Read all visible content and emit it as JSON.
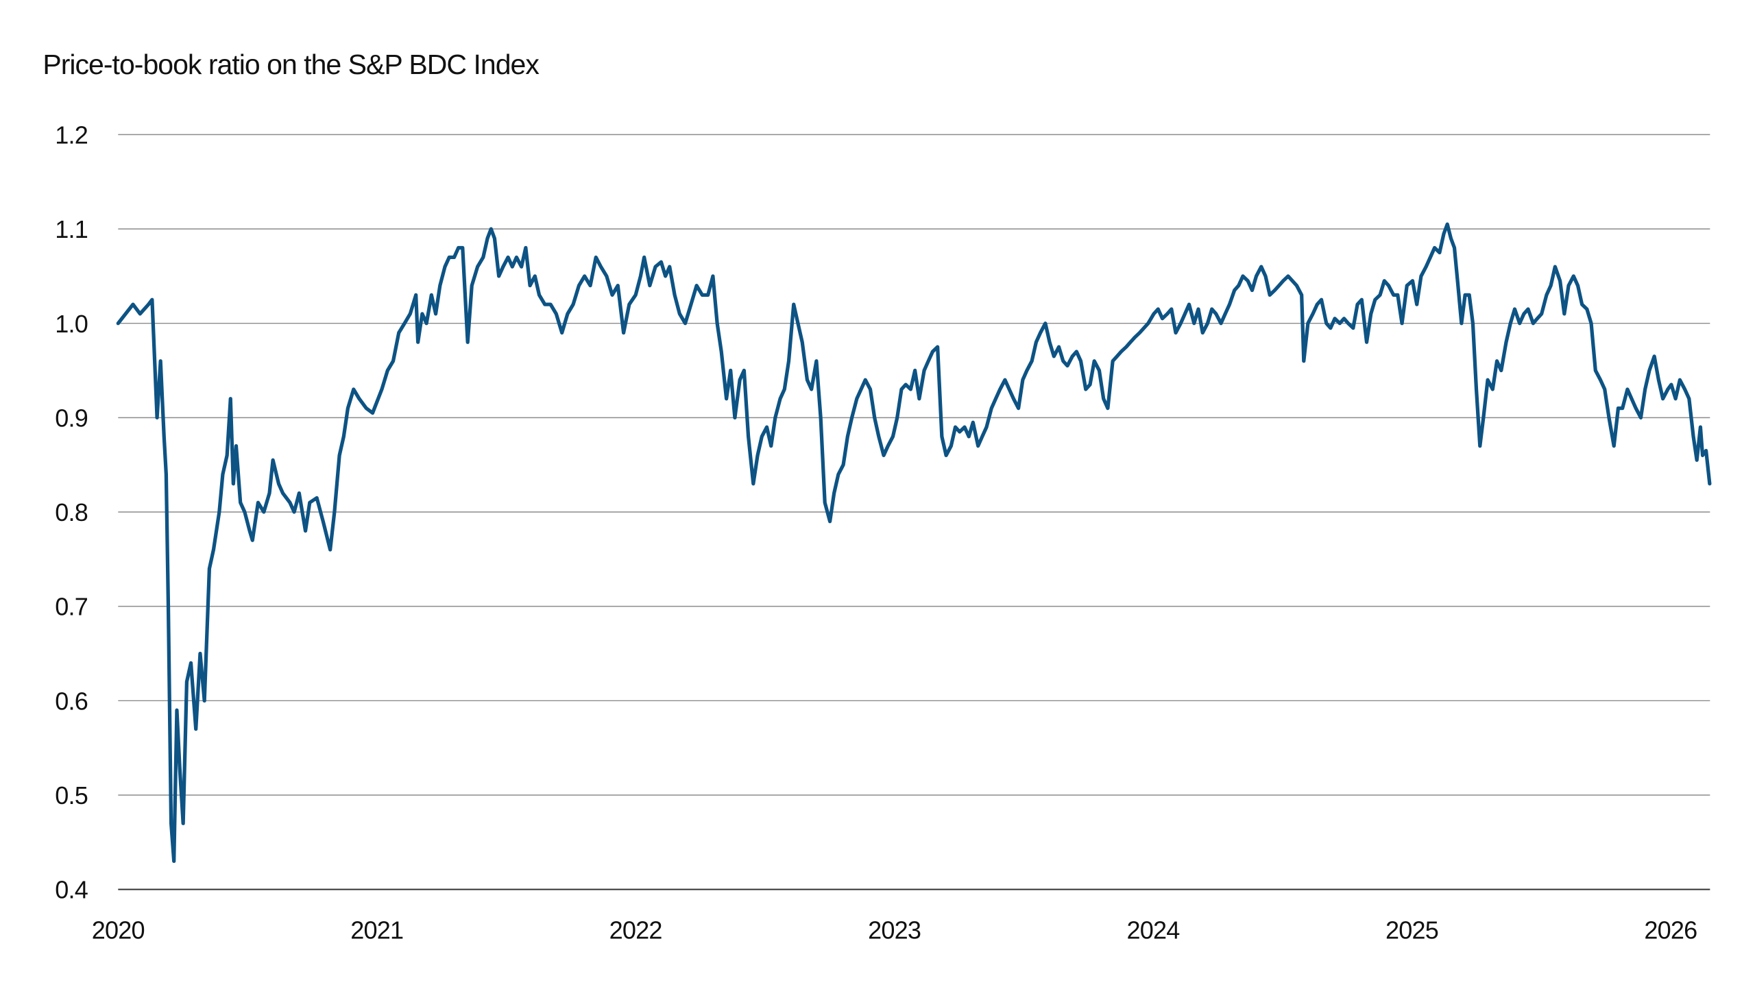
{
  "chart_data": {
    "type": "line",
    "title": "Price-to-book ratio on the S&P BDC Index",
    "xlabel": "",
    "ylabel": "",
    "ylim": [
      0.4,
      1.2
    ],
    "yticks": [
      "1.2",
      "1.1",
      "1.0",
      "0.9",
      "0.8",
      "0.7",
      "0.6",
      "0.5",
      "0.4"
    ],
    "xticks": [
      "2020",
      "2021",
      "2022",
      "2023",
      "2024",
      "2025",
      "2026"
    ],
    "xlim": [
      "2020-01-01",
      "2026-02-25"
    ],
    "grid": "horizontal",
    "line_color": "#0d5384",
    "points": [
      [
        "2020-01-01",
        1.0
      ],
      [
        "2020-01-22",
        1.02
      ],
      [
        "2020-02-01",
        1.01
      ],
      [
        "2020-02-13",
        1.02
      ],
      [
        "2020-02-18",
        1.025
      ],
      [
        "2020-02-25",
        0.9
      ],
      [
        "2020-03-01",
        0.96
      ],
      [
        "2020-03-06",
        0.88
      ],
      [
        "2020-03-09",
        0.84
      ],
      [
        "2020-03-12",
        0.7
      ],
      [
        "2020-03-16",
        0.47
      ],
      [
        "2020-03-20",
        0.43
      ],
      [
        "2020-03-24",
        0.59
      ],
      [
        "2020-03-28",
        0.53
      ],
      [
        "2020-04-02",
        0.47
      ],
      [
        "2020-04-07",
        0.62
      ],
      [
        "2020-04-13",
        0.64
      ],
      [
        "2020-04-20",
        0.57
      ],
      [
        "2020-04-26",
        0.65
      ],
      [
        "2020-05-02",
        0.6
      ],
      [
        "2020-05-09",
        0.74
      ],
      [
        "2020-05-15",
        0.76
      ],
      [
        "2020-05-23",
        0.8
      ],
      [
        "2020-05-28",
        0.84
      ],
      [
        "2020-06-03",
        0.86
      ],
      [
        "2020-06-08",
        0.92
      ],
      [
        "2020-06-12",
        0.83
      ],
      [
        "2020-06-16",
        0.87
      ],
      [
        "2020-06-22",
        0.81
      ],
      [
        "2020-06-28",
        0.8
      ],
      [
        "2020-07-05",
        0.78
      ],
      [
        "2020-07-09",
        0.77
      ],
      [
        "2020-07-17",
        0.81
      ],
      [
        "2020-07-25",
        0.8
      ],
      [
        "2020-08-02",
        0.82
      ],
      [
        "2020-08-07",
        0.855
      ],
      [
        "2020-08-15",
        0.83
      ],
      [
        "2020-08-21",
        0.82
      ],
      [
        "2020-08-31",
        0.81
      ],
      [
        "2020-09-06",
        0.8
      ],
      [
        "2020-09-13",
        0.82
      ],
      [
        "2020-09-22",
        0.78
      ],
      [
        "2020-09-28",
        0.81
      ],
      [
        "2020-10-08",
        0.815
      ],
      [
        "2020-10-17",
        0.79
      ],
      [
        "2020-10-27",
        0.76
      ],
      [
        "2020-11-02",
        0.8
      ],
      [
        "2020-11-09",
        0.86
      ],
      [
        "2020-11-15",
        0.88
      ],
      [
        "2020-11-21",
        0.91
      ],
      [
        "2020-11-29",
        0.93
      ],
      [
        "2020-12-07",
        0.92
      ],
      [
        "2020-12-17",
        0.91
      ],
      [
        "2020-12-26",
        0.905
      ],
      [
        "2021-01-08",
        0.93
      ],
      [
        "2021-01-16",
        0.95
      ],
      [
        "2021-01-24",
        0.96
      ],
      [
        "2021-02-01",
        0.99
      ],
      [
        "2021-02-09",
        1.0
      ],
      [
        "2021-02-17",
        1.01
      ],
      [
        "2021-02-25",
        1.03
      ],
      [
        "2021-02-28",
        0.98
      ],
      [
        "2021-03-06",
        1.01
      ],
      [
        "2021-03-12",
        1.0
      ],
      [
        "2021-03-19",
        1.03
      ],
      [
        "2021-03-25",
        1.01
      ],
      [
        "2021-03-31",
        1.04
      ],
      [
        "2021-04-07",
        1.06
      ],
      [
        "2021-04-13",
        1.07
      ],
      [
        "2021-04-20",
        1.07
      ],
      [
        "2021-04-26",
        1.08
      ],
      [
        "2021-05-02",
        1.08
      ],
      [
        "2021-05-09",
        0.98
      ],
      [
        "2021-05-15",
        1.04
      ],
      [
        "2021-05-23",
        1.06
      ],
      [
        "2021-05-31",
        1.07
      ],
      [
        "2021-06-06",
        1.09
      ],
      [
        "2021-06-11",
        1.1
      ],
      [
        "2021-06-16",
        1.09
      ],
      [
        "2021-06-22",
        1.05
      ],
      [
        "2021-06-28",
        1.06
      ],
      [
        "2021-07-05",
        1.07
      ],
      [
        "2021-07-11",
        1.06
      ],
      [
        "2021-07-17",
        1.07
      ],
      [
        "2021-07-24",
        1.06
      ],
      [
        "2021-07-30",
        1.08
      ],
      [
        "2021-08-05",
        1.04
      ],
      [
        "2021-08-12",
        1.05
      ],
      [
        "2021-08-18",
        1.03
      ],
      [
        "2021-08-26",
        1.02
      ],
      [
        "2021-09-03",
        1.02
      ],
      [
        "2021-09-11",
        1.01
      ],
      [
        "2021-09-19",
        0.99
      ],
      [
        "2021-09-27",
        1.01
      ],
      [
        "2021-10-05",
        1.02
      ],
      [
        "2021-10-13",
        1.04
      ],
      [
        "2021-10-21",
        1.05
      ],
      [
        "2021-10-29",
        1.04
      ],
      [
        "2021-11-06",
        1.07
      ],
      [
        "2021-11-13",
        1.06
      ],
      [
        "2021-11-21",
        1.05
      ],
      [
        "2021-11-29",
        1.03
      ],
      [
        "2021-12-07",
        1.04
      ],
      [
        "2021-12-15",
        0.99
      ],
      [
        "2021-12-23",
        1.02
      ],
      [
        "2022-01-01",
        1.03
      ],
      [
        "2022-01-08",
        1.05
      ],
      [
        "2022-01-13",
        1.07
      ],
      [
        "2022-01-21",
        1.04
      ],
      [
        "2022-01-29",
        1.06
      ],
      [
        "2022-02-06",
        1.065
      ],
      [
        "2022-02-12",
        1.05
      ],
      [
        "2022-02-18",
        1.06
      ],
      [
        "2022-02-25",
        1.03
      ],
      [
        "2022-03-04",
        1.01
      ],
      [
        "2022-03-12",
        1.0
      ],
      [
        "2022-03-20",
        1.02
      ],
      [
        "2022-03-28",
        1.04
      ],
      [
        "2022-04-05",
        1.03
      ],
      [
        "2022-04-13",
        1.03
      ],
      [
        "2022-04-20",
        1.05
      ],
      [
        "2022-04-26",
        1.0
      ],
      [
        "2022-05-02",
        0.97
      ],
      [
        "2022-05-09",
        0.92
      ],
      [
        "2022-05-15",
        0.95
      ],
      [
        "2022-05-21",
        0.9
      ],
      [
        "2022-05-28",
        0.94
      ],
      [
        "2022-06-03",
        0.95
      ],
      [
        "2022-06-09",
        0.88
      ],
      [
        "2022-06-16",
        0.83
      ],
      [
        "2022-06-22",
        0.86
      ],
      [
        "2022-06-28",
        0.88
      ],
      [
        "2022-07-05",
        0.89
      ],
      [
        "2022-07-11",
        0.87
      ],
      [
        "2022-07-17",
        0.9
      ],
      [
        "2022-07-24",
        0.92
      ],
      [
        "2022-07-30",
        0.93
      ],
      [
        "2022-08-05",
        0.96
      ],
      [
        "2022-08-12",
        1.02
      ],
      [
        "2022-08-18",
        1.0
      ],
      [
        "2022-08-24",
        0.98
      ],
      [
        "2022-08-31",
        0.94
      ],
      [
        "2022-09-06",
        0.93
      ],
      [
        "2022-09-13",
        0.96
      ],
      [
        "2022-09-19",
        0.9
      ],
      [
        "2022-09-25",
        0.81
      ],
      [
        "2022-10-02",
        0.79
      ],
      [
        "2022-10-08",
        0.82
      ],
      [
        "2022-10-14",
        0.84
      ],
      [
        "2022-10-21",
        0.85
      ],
      [
        "2022-10-27",
        0.88
      ],
      [
        "2022-11-02",
        0.9
      ],
      [
        "2022-11-09",
        0.92
      ],
      [
        "2022-11-15",
        0.93
      ],
      [
        "2022-11-21",
        0.94
      ],
      [
        "2022-11-28",
        0.93
      ],
      [
        "2022-12-04",
        0.9
      ],
      [
        "2022-12-10",
        0.88
      ],
      [
        "2022-12-17",
        0.86
      ],
      [
        "2022-12-23",
        0.87
      ],
      [
        "2022-12-30",
        0.88
      ],
      [
        "2023-01-05",
        0.9
      ],
      [
        "2023-01-11",
        0.93
      ],
      [
        "2023-01-17",
        0.935
      ],
      [
        "2023-01-24",
        0.93
      ],
      [
        "2023-01-30",
        0.95
      ],
      [
        "2023-02-05",
        0.92
      ],
      [
        "2023-02-12",
        0.95
      ],
      [
        "2023-02-18",
        0.96
      ],
      [
        "2023-02-24",
        0.97
      ],
      [
        "2023-03-03",
        0.975
      ],
      [
        "2023-03-09",
        0.88
      ],
      [
        "2023-03-15",
        0.86
      ],
      [
        "2023-03-22",
        0.87
      ],
      [
        "2023-03-28",
        0.89
      ],
      [
        "2023-04-03",
        0.885
      ],
      [
        "2023-04-10",
        0.89
      ],
      [
        "2023-04-16",
        0.88
      ],
      [
        "2023-04-22",
        0.895
      ],
      [
        "2023-04-29",
        0.87
      ],
      [
        "2023-05-05",
        0.88
      ],
      [
        "2023-05-11",
        0.89
      ],
      [
        "2023-05-18",
        0.91
      ],
      [
        "2023-05-24",
        0.92
      ],
      [
        "2023-05-30",
        0.93
      ],
      [
        "2023-06-06",
        0.94
      ],
      [
        "2023-06-12",
        0.93
      ],
      [
        "2023-06-18",
        0.92
      ],
      [
        "2023-06-25",
        0.91
      ],
      [
        "2023-07-01",
        0.94
      ],
      [
        "2023-07-07",
        0.95
      ],
      [
        "2023-07-14",
        0.96
      ],
      [
        "2023-07-20",
        0.98
      ],
      [
        "2023-07-26",
        0.99
      ],
      [
        "2023-08-02",
        1.0
      ],
      [
        "2023-08-08",
        0.98
      ],
      [
        "2023-08-14",
        0.965
      ],
      [
        "2023-08-21",
        0.975
      ],
      [
        "2023-08-27",
        0.96
      ],
      [
        "2023-09-02",
        0.955
      ],
      [
        "2023-09-09",
        0.965
      ],
      [
        "2023-09-15",
        0.97
      ],
      [
        "2023-09-21",
        0.96
      ],
      [
        "2023-09-28",
        0.93
      ],
      [
        "2023-10-04",
        0.935
      ],
      [
        "2023-10-10",
        0.96
      ],
      [
        "2023-10-17",
        0.95
      ],
      [
        "2023-10-23",
        0.92
      ],
      [
        "2023-10-29",
        0.91
      ],
      [
        "2023-11-05",
        0.96
      ],
      [
        "2023-11-11",
        0.965
      ],
      [
        "2023-11-17",
        0.97
      ],
      [
        "2023-11-24",
        0.975
      ],
      [
        "2023-11-30",
        0.98
      ],
      [
        "2023-12-06",
        0.985
      ],
      [
        "2023-12-13",
        0.99
      ],
      [
        "2023-12-19",
        0.995
      ],
      [
        "2023-12-25",
        1.0
      ],
      [
        "2024-01-02",
        1.01
      ],
      [
        "2024-01-08",
        1.015
      ],
      [
        "2024-01-14",
        1.005
      ],
      [
        "2024-01-21",
        1.01
      ],
      [
        "2024-01-27",
        1.015
      ],
      [
        "2024-02-02",
        0.99
      ],
      [
        "2024-02-09",
        1.0
      ],
      [
        "2024-02-15",
        1.01
      ],
      [
        "2024-02-21",
        1.02
      ],
      [
        "2024-02-28",
        1.0
      ],
      [
        "2024-03-05",
        1.015
      ],
      [
        "2024-03-11",
        0.99
      ],
      [
        "2024-03-18",
        1.0
      ],
      [
        "2024-03-24",
        1.015
      ],
      [
        "2024-03-30",
        1.01
      ],
      [
        "2024-04-06",
        1.0
      ],
      [
        "2024-04-12",
        1.01
      ],
      [
        "2024-04-18",
        1.02
      ],
      [
        "2024-04-25",
        1.035
      ],
      [
        "2024-05-01",
        1.04
      ],
      [
        "2024-05-07",
        1.05
      ],
      [
        "2024-05-14",
        1.045
      ],
      [
        "2024-05-20",
        1.035
      ],
      [
        "2024-05-26",
        1.05
      ],
      [
        "2024-06-02",
        1.06
      ],
      [
        "2024-06-08",
        1.05
      ],
      [
        "2024-06-14",
        1.03
      ],
      [
        "2024-06-21",
        1.035
      ],
      [
        "2024-06-27",
        1.04
      ],
      [
        "2024-07-03",
        1.045
      ],
      [
        "2024-07-10",
        1.05
      ],
      [
        "2024-07-16",
        1.045
      ],
      [
        "2024-07-22",
        1.04
      ],
      [
        "2024-07-29",
        1.03
      ],
      [
        "2024-08-01",
        0.96
      ],
      [
        "2024-08-07",
        1.0
      ],
      [
        "2024-08-14",
        1.01
      ],
      [
        "2024-08-20",
        1.02
      ],
      [
        "2024-08-26",
        1.025
      ],
      [
        "2024-09-02",
        1.0
      ],
      [
        "2024-09-08",
        0.995
      ],
      [
        "2024-09-14",
        1.005
      ],
      [
        "2024-09-21",
        1.0
      ],
      [
        "2024-09-27",
        1.005
      ],
      [
        "2024-10-03",
        1.0
      ],
      [
        "2024-10-10",
        0.995
      ],
      [
        "2024-10-16",
        1.02
      ],
      [
        "2024-10-22",
        1.025
      ],
      [
        "2024-10-29",
        0.98
      ],
      [
        "2024-11-04",
        1.01
      ],
      [
        "2024-11-10",
        1.025
      ],
      [
        "2024-11-17",
        1.03
      ],
      [
        "2024-11-23",
        1.045
      ],
      [
        "2024-11-29",
        1.04
      ],
      [
        "2024-12-06",
        1.03
      ],
      [
        "2024-12-12",
        1.03
      ],
      [
        "2024-12-18",
        1.0
      ],
      [
        "2024-12-25",
        1.04
      ],
      [
        "2025-01-02",
        1.045
      ],
      [
        "2025-01-08",
        1.02
      ],
      [
        "2025-01-14",
        1.05
      ],
      [
        "2025-01-21",
        1.06
      ],
      [
        "2025-01-27",
        1.07
      ],
      [
        "2025-02-02",
        1.08
      ],
      [
        "2025-02-09",
        1.075
      ],
      [
        "2025-02-15",
        1.095
      ],
      [
        "2025-02-20",
        1.105
      ],
      [
        "2025-02-25",
        1.09
      ],
      [
        "2025-03-02",
        1.08
      ],
      [
        "2025-03-07",
        1.04
      ],
      [
        "2025-03-12",
        1.0
      ],
      [
        "2025-03-17",
        1.03
      ],
      [
        "2025-03-23",
        1.03
      ],
      [
        "2025-03-28",
        1.0
      ],
      [
        "2025-04-02",
        0.93
      ],
      [
        "2025-04-07",
        0.87
      ],
      [
        "2025-04-12",
        0.9
      ],
      [
        "2025-04-18",
        0.94
      ],
      [
        "2025-04-25",
        0.93
      ],
      [
        "2025-05-01",
        0.96
      ],
      [
        "2025-05-07",
        0.95
      ],
      [
        "2025-05-14",
        0.98
      ],
      [
        "2025-05-20",
        1.0
      ],
      [
        "2025-05-26",
        1.015
      ],
      [
        "2025-06-02",
        1.0
      ],
      [
        "2025-06-08",
        1.01
      ],
      [
        "2025-06-14",
        1.015
      ],
      [
        "2025-06-21",
        1.0
      ],
      [
        "2025-06-27",
        1.005
      ],
      [
        "2025-07-03",
        1.01
      ],
      [
        "2025-07-10",
        1.03
      ],
      [
        "2025-07-16",
        1.04
      ],
      [
        "2025-07-22",
        1.06
      ],
      [
        "2025-07-29",
        1.045
      ],
      [
        "2025-08-04",
        1.01
      ],
      [
        "2025-08-10",
        1.04
      ],
      [
        "2025-08-17",
        1.05
      ],
      [
        "2025-08-23",
        1.04
      ],
      [
        "2025-08-29",
        1.02
      ],
      [
        "2025-09-05",
        1.015
      ],
      [
        "2025-09-11",
        1.0
      ],
      [
        "2025-09-17",
        0.95
      ],
      [
        "2025-09-24",
        0.94
      ],
      [
        "2025-09-30",
        0.93
      ],
      [
        "2025-10-06",
        0.9
      ],
      [
        "2025-10-13",
        0.87
      ],
      [
        "2025-10-19",
        0.91
      ],
      [
        "2025-10-25",
        0.91
      ],
      [
        "2025-11-01",
        0.93
      ],
      [
        "2025-11-07",
        0.92
      ],
      [
        "2025-11-13",
        0.91
      ],
      [
        "2025-11-20",
        0.9
      ],
      [
        "2025-11-26",
        0.93
      ],
      [
        "2025-12-02",
        0.95
      ],
      [
        "2025-12-09",
        0.965
      ],
      [
        "2025-12-15",
        0.94
      ],
      [
        "2025-12-21",
        0.92
      ],
      [
        "2025-12-28",
        0.93
      ],
      [
        "2026-01-02",
        0.935
      ],
      [
        "2026-01-08",
        0.92
      ],
      [
        "2026-01-14",
        0.94
      ],
      [
        "2026-01-21",
        0.93
      ],
      [
        "2026-01-27",
        0.92
      ],
      [
        "2026-02-02",
        0.88
      ],
      [
        "2026-02-07",
        0.855
      ],
      [
        "2026-02-12",
        0.89
      ],
      [
        "2026-02-15",
        0.86
      ],
      [
        "2026-02-20",
        0.865
      ],
      [
        "2026-02-25",
        0.83
      ]
    ]
  }
}
